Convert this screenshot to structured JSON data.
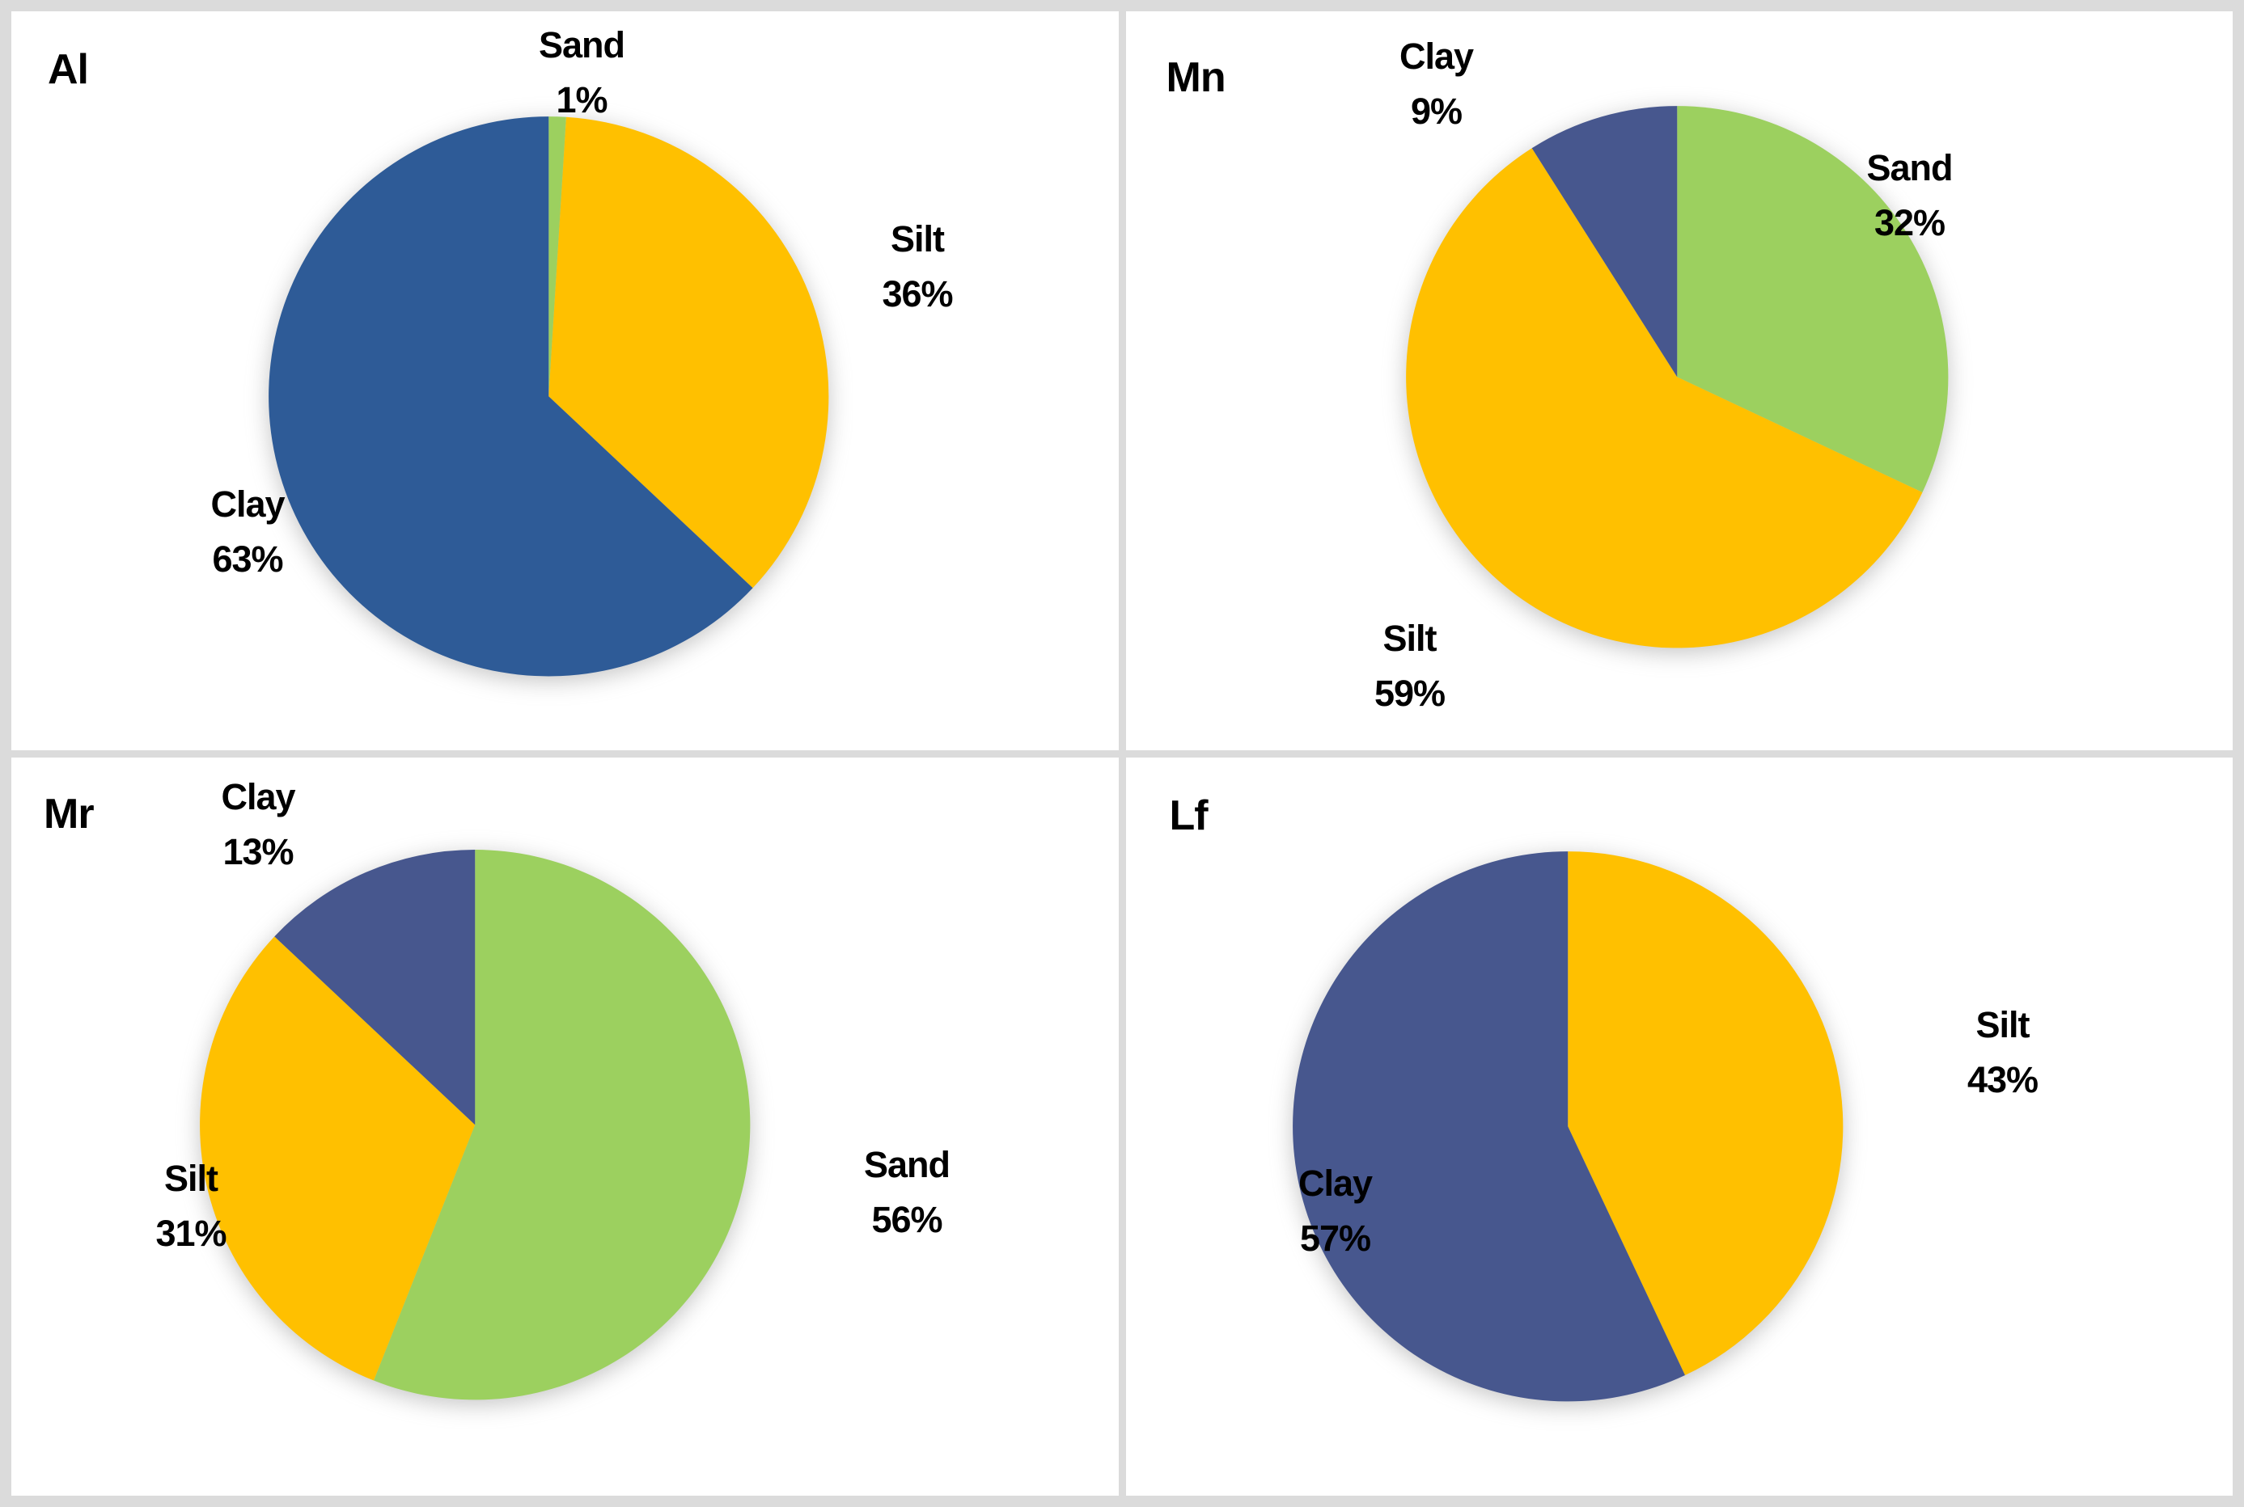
{
  "figure": {
    "background": "#FFFFFF",
    "divider_color": "#DBDBDB",
    "text_color": "#000000"
  },
  "colors": {
    "sand": "#9CD05F",
    "silt": "#FFC000",
    "clay_bright_blue": "#2E5B97",
    "clay_slate_blue": "#47578E"
  },
  "chart_data": [
    {
      "type": "pie",
      "title": "Al",
      "start_angle_deg": 0,
      "direction": "clockwise",
      "labels_position": "outside",
      "legend": "none",
      "slices": [
        {
          "label": "Sand",
          "value_pct": 1,
          "display": "1%",
          "color": "#9CD05F"
        },
        {
          "label": "Silt",
          "value_pct": 36,
          "display": "36%",
          "color": "#FFC000"
        },
        {
          "label": "Clay",
          "value_pct": 63,
          "display": "63%",
          "color": "#2E5B97"
        }
      ]
    },
    {
      "type": "pie",
      "title": "Mn",
      "start_angle_deg": 0,
      "direction": "clockwise",
      "labels_position": "outside",
      "legend": "none",
      "slices": [
        {
          "label": "Sand",
          "value_pct": 32,
          "display": "32%",
          "color": "#9CD05F"
        },
        {
          "label": "Silt",
          "value_pct": 59,
          "display": "59%",
          "color": "#FFC000"
        },
        {
          "label": "Clay",
          "value_pct": 9,
          "display": "9%",
          "color": "#47578E"
        }
      ]
    },
    {
      "type": "pie",
      "title": "Mr",
      "start_angle_deg": 0,
      "direction": "clockwise",
      "labels_position": "outside",
      "legend": "none",
      "slices": [
        {
          "label": "Sand",
          "value_pct": 56,
          "display": "56%",
          "color": "#9CD05F"
        },
        {
          "label": "Silt",
          "value_pct": 31,
          "display": "31%",
          "color": "#FFC000"
        },
        {
          "label": "Clay",
          "value_pct": 13,
          "display": "13%",
          "color": "#47578E"
        }
      ]
    },
    {
      "type": "pie",
      "title": "Lf",
      "start_angle_deg": 0,
      "direction": "clockwise",
      "labels_position": "outside",
      "legend": "none",
      "slices": [
        {
          "label": "Silt",
          "value_pct": 43,
          "display": "43%",
          "color": "#FFC000"
        },
        {
          "label": "Clay",
          "value_pct": 57,
          "display": "57%",
          "color": "#47578E"
        }
      ]
    }
  ]
}
